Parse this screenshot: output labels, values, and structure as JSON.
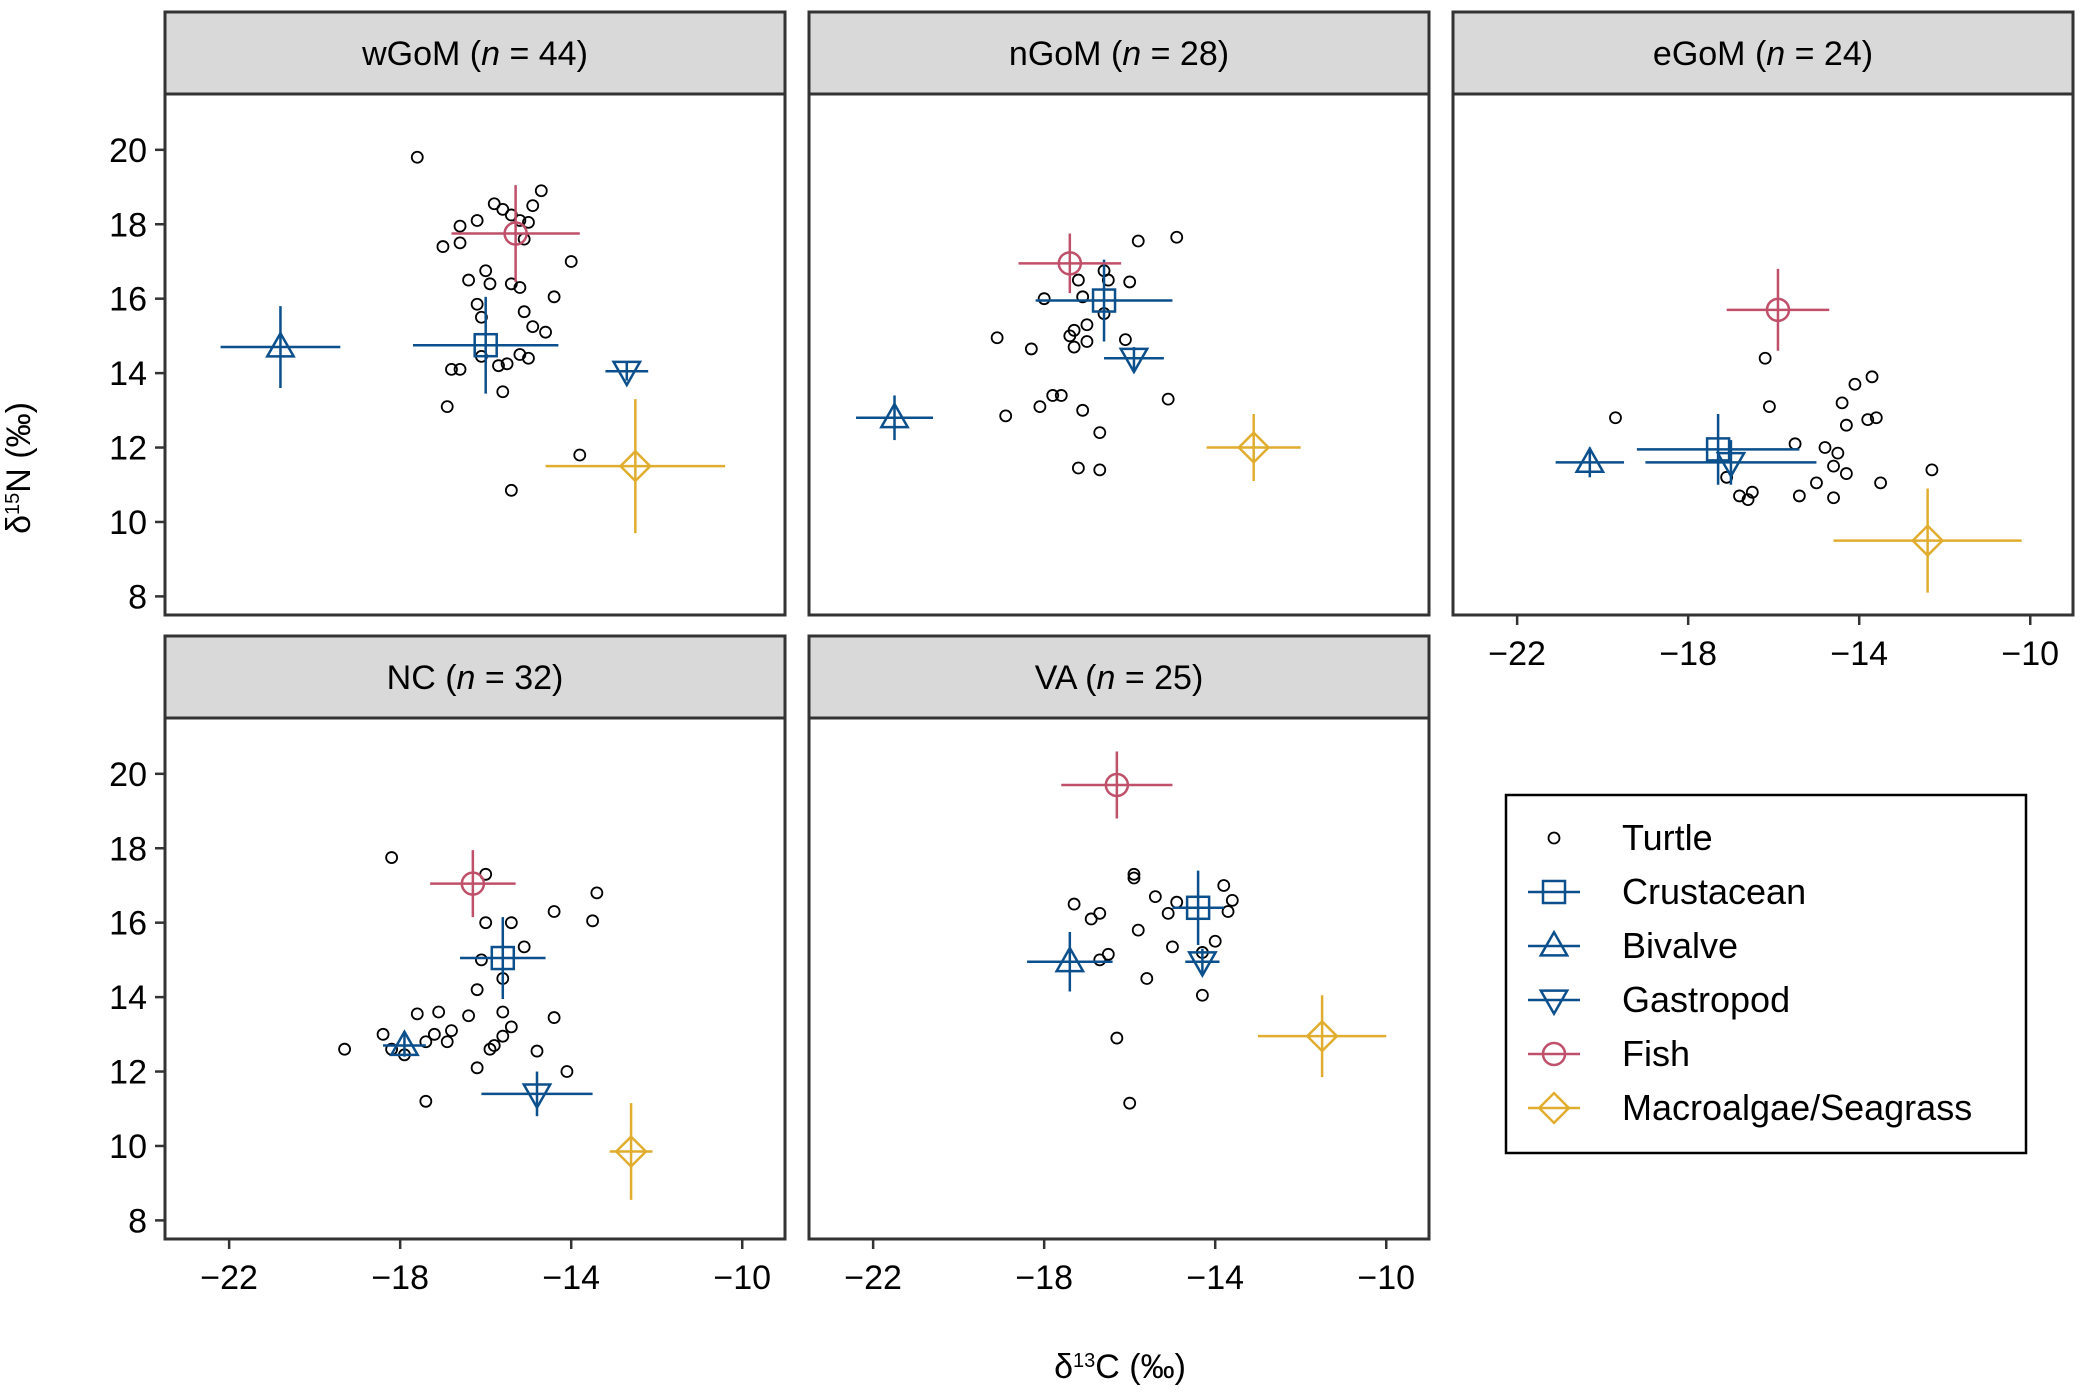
{
  "figure": {
    "x_axis_label": {
      "symbol": "δ",
      "sup": "13",
      "rest": "C (‰)"
    },
    "y_axis_label": {
      "symbol": "δ",
      "sup": "15",
      "rest": "N (‰)"
    }
  },
  "legend": {
    "entries": [
      {
        "name": "Turtle",
        "marker": "circle-small",
        "color": "#000000"
      },
      {
        "name": "Crustacean",
        "marker": "square",
        "color": "#0b4f8c"
      },
      {
        "name": "Bivalve",
        "marker": "triangle-up",
        "color": "#0b4f8c"
      },
      {
        "name": "Gastropod",
        "marker": "triangle-down",
        "color": "#0b4f8c"
      },
      {
        "name": "Fish",
        "marker": "circle",
        "color": "#c0506a"
      },
      {
        "name": "Macroalgae/Seagrass",
        "marker": "diamond",
        "color": "#e0ad2e"
      }
    ]
  },
  "chart_data": [
    {
      "type": "scatter",
      "panel": "wGoM",
      "region": "wGoM",
      "n_label": "n",
      "n_eq": " =  44",
      "xlim": [
        -23.5,
        -9
      ],
      "ylim": [
        7.5,
        21.5
      ],
      "xticks": [
        "−22",
        "−18",
        "−14",
        "−10"
      ],
      "xtick_values": [
        -22,
        -18,
        -14,
        -10
      ],
      "yticks": [
        "20",
        "18",
        "16",
        "14",
        "12",
        "10",
        "8"
      ],
      "ytick_values": [
        20,
        18,
        16,
        14,
        12,
        10,
        8
      ],
      "show_x_ticks": false,
      "turtles": [
        [
          -17.6,
          19.8
        ],
        [
          -15.8,
          18.55
        ],
        [
          -15.6,
          18.4
        ],
        [
          -15.4,
          18.25
        ],
        [
          -15.2,
          18.1
        ],
        [
          -15.0,
          18.05
        ],
        [
          -14.7,
          18.9
        ],
        [
          -14.9,
          18.5
        ],
        [
          -16.2,
          18.1
        ],
        [
          -16.6,
          17.95
        ],
        [
          -17.0,
          17.4
        ],
        [
          -16.6,
          17.5
        ],
        [
          -15.1,
          17.6
        ],
        [
          -14.0,
          17.0
        ],
        [
          -16.0,
          16.75
        ],
        [
          -16.4,
          16.5
        ],
        [
          -15.9,
          16.4
        ],
        [
          -15.4,
          16.4
        ],
        [
          -15.2,
          16.3
        ],
        [
          -14.4,
          16.05
        ],
        [
          -15.1,
          15.65
        ],
        [
          -16.2,
          15.85
        ],
        [
          -16.1,
          15.5
        ],
        [
          -14.9,
          15.25
        ],
        [
          -14.6,
          15.1
        ],
        [
          -16.1,
          14.45
        ],
        [
          -15.7,
          14.2
        ],
        [
          -15.5,
          14.25
        ],
        [
          -15.2,
          14.5
        ],
        [
          -15.0,
          14.4
        ],
        [
          -16.8,
          14.1
        ],
        [
          -16.6,
          14.1
        ],
        [
          -16.9,
          13.1
        ],
        [
          -15.6,
          13.5
        ],
        [
          -15.4,
          10.85
        ],
        [
          -13.8,
          11.8
        ]
      ],
      "sources": [
        {
          "group": "Crustacean",
          "x": -16.0,
          "y": 14.75,
          "xerr": 1.7,
          "yerr": 1.3
        },
        {
          "group": "Bivalve",
          "x": -20.8,
          "y": 14.7,
          "xerr": 1.4,
          "yerr": 1.1
        },
        {
          "group": "Gastropod",
          "x": -12.7,
          "y": 14.05,
          "xerr": 0.5,
          "yerr": 0.25
        },
        {
          "group": "Fish",
          "x": -15.3,
          "y": 17.75,
          "xerr": 1.5,
          "yerr": 1.3
        },
        {
          "group": "Macroalgae/Seagrass",
          "x": -12.5,
          "y": 11.5,
          "xerr": 2.1,
          "yerr": 1.8
        }
      ]
    },
    {
      "type": "scatter",
      "panel": "nGoM",
      "region": "nGoM",
      "n_label": "n",
      "n_eq": " = 28",
      "xlim": [
        -23.5,
        -9
      ],
      "ylim": [
        7.5,
        21.5
      ],
      "xticks": [
        "−22",
        "−18",
        "−14",
        "−10"
      ],
      "xtick_values": [
        -22,
        -18,
        -14,
        -10
      ],
      "yticks": [],
      "ytick_values": [],
      "show_x_ticks": false,
      "turtles": [
        [
          -14.9,
          17.65
        ],
        [
          -15.8,
          17.55
        ],
        [
          -16.6,
          16.75
        ],
        [
          -16.5,
          16.5
        ],
        [
          -16.0,
          16.45
        ],
        [
          -17.2,
          16.5
        ],
        [
          -18.0,
          16.0
        ],
        [
          -17.1,
          16.05
        ],
        [
          -16.6,
          15.6
        ],
        [
          -17.0,
          15.3
        ],
        [
          -17.3,
          15.15
        ],
        [
          -17.4,
          15.0
        ],
        [
          -17.0,
          14.85
        ],
        [
          -17.3,
          14.7
        ],
        [
          -18.3,
          14.65
        ],
        [
          -16.1,
          14.9
        ],
        [
          -19.1,
          14.95
        ],
        [
          -17.8,
          13.4
        ],
        [
          -17.6,
          13.4
        ],
        [
          -18.1,
          13.1
        ],
        [
          -17.1,
          13.0
        ],
        [
          -15.1,
          13.3
        ],
        [
          -18.9,
          12.85
        ],
        [
          -16.7,
          12.4
        ],
        [
          -17.2,
          11.45
        ],
        [
          -16.7,
          11.4
        ]
      ],
      "sources": [
        {
          "group": "Crustacean",
          "x": -16.6,
          "y": 15.95,
          "xerr": 1.6,
          "yerr": 1.1
        },
        {
          "group": "Bivalve",
          "x": -21.5,
          "y": 12.8,
          "xerr": 0.9,
          "yerr": 0.6
        },
        {
          "group": "Gastropod",
          "x": -15.9,
          "y": 14.4,
          "xerr": 0.7,
          "yerr": 0.3
        },
        {
          "group": "Fish",
          "x": -17.4,
          "y": 16.95,
          "xerr": 1.2,
          "yerr": 0.8
        },
        {
          "group": "Macroalgae/Seagrass",
          "x": -13.1,
          "y": 12.0,
          "xerr": 1.1,
          "yerr": 0.9
        }
      ]
    },
    {
      "type": "scatter",
      "panel": "eGoM",
      "region": "eGoM",
      "n_label": "n",
      "n_eq": " = 24",
      "xlim": [
        -23.5,
        -9
      ],
      "ylim": [
        7.5,
        21.5
      ],
      "xticks": [
        "−22",
        "−18",
        "−14",
        "−10"
      ],
      "xtick_values": [
        -22,
        -18,
        -14,
        -10
      ],
      "yticks": [],
      "ytick_values": [],
      "show_x_ticks": true,
      "turtles": [
        [
          -16.2,
          14.4
        ],
        [
          -13.7,
          13.9
        ],
        [
          -14.1,
          13.7
        ],
        [
          -14.4,
          13.2
        ],
        [
          -16.1,
          13.1
        ],
        [
          -19.7,
          12.8
        ],
        [
          -13.8,
          12.75
        ],
        [
          -13.6,
          12.8
        ],
        [
          -14.3,
          12.6
        ],
        [
          -15.5,
          12.1
        ],
        [
          -14.8,
          12.0
        ],
        [
          -14.5,
          11.85
        ],
        [
          -14.6,
          11.5
        ],
        [
          -14.3,
          11.3
        ],
        [
          -15.0,
          11.05
        ],
        [
          -13.5,
          11.05
        ],
        [
          -12.3,
          11.4
        ],
        [
          -15.4,
          10.7
        ],
        [
          -14.6,
          10.65
        ],
        [
          -16.5,
          10.8
        ],
        [
          -16.8,
          10.7
        ],
        [
          -16.6,
          10.6
        ],
        [
          -17.1,
          11.2
        ]
      ],
      "sources": [
        {
          "group": "Crustacean",
          "x": -17.3,
          "y": 11.95,
          "xerr": 1.9,
          "yerr": 0.95
        },
        {
          "group": "Bivalve",
          "x": -20.3,
          "y": 11.6,
          "xerr": 0.8,
          "yerr": 0.4
        },
        {
          "group": "Gastropod",
          "x": -17.0,
          "y": 11.6,
          "xerr": 2.0,
          "yerr": 0.6
        },
        {
          "group": "Fish",
          "x": -15.9,
          "y": 15.7,
          "xerr": 1.2,
          "yerr": 1.1
        },
        {
          "group": "Macroalgae/Seagrass",
          "x": -12.4,
          "y": 9.5,
          "xerr": 2.2,
          "yerr": 1.4
        }
      ]
    },
    {
      "type": "scatter",
      "panel": "NC",
      "region": "NC",
      "n_label": "n",
      "n_eq": " = 32",
      "xlim": [
        -23.5,
        -9
      ],
      "ylim": [
        7.5,
        21.5
      ],
      "xticks": [
        "−22",
        "−18",
        "−14",
        "−10"
      ],
      "xtick_values": [
        -22,
        -18,
        -14,
        -10
      ],
      "yticks": [
        "20",
        "18",
        "16",
        "14",
        "12",
        "10",
        "8"
      ],
      "ytick_values": [
        20,
        18,
        16,
        14,
        12,
        10,
        8
      ],
      "show_x_ticks": true,
      "turtles": [
        [
          -18.2,
          17.75
        ],
        [
          -16.0,
          17.3
        ],
        [
          -13.4,
          16.8
        ],
        [
          -14.4,
          16.3
        ],
        [
          -13.5,
          16.05
        ],
        [
          -15.4,
          16.0
        ],
        [
          -16.0,
          16.0
        ],
        [
          -15.1,
          15.35
        ],
        [
          -16.1,
          15.0
        ],
        [
          -15.6,
          14.5
        ],
        [
          -16.2,
          14.2
        ],
        [
          -15.6,
          13.6
        ],
        [
          -14.4,
          13.45
        ],
        [
          -17.6,
          13.55
        ],
        [
          -17.1,
          13.6
        ],
        [
          -16.4,
          13.5
        ],
        [
          -15.4,
          13.2
        ],
        [
          -16.8,
          13.1
        ],
        [
          -17.2,
          13.0
        ],
        [
          -18.4,
          13.0
        ],
        [
          -15.6,
          12.95
        ],
        [
          -16.9,
          12.8
        ],
        [
          -17.4,
          12.8
        ],
        [
          -18.2,
          12.6
        ],
        [
          -19.3,
          12.6
        ],
        [
          -15.8,
          12.7
        ],
        [
          -14.8,
          12.55
        ],
        [
          -17.9,
          12.45
        ],
        [
          -16.2,
          12.1
        ],
        [
          -14.1,
          12.0
        ],
        [
          -17.4,
          11.2
        ],
        [
          -15.9,
          12.6
        ]
      ],
      "sources": [
        {
          "group": "Crustacean",
          "x": -15.6,
          "y": 15.05,
          "xerr": 1.0,
          "yerr": 1.1
        },
        {
          "group": "Bivalve",
          "x": -17.9,
          "y": 12.7,
          "xerr": 0.5,
          "yerr": 0.3
        },
        {
          "group": "Gastropod",
          "x": -14.8,
          "y": 11.4,
          "xerr": 1.3,
          "yerr": 0.6
        },
        {
          "group": "Fish",
          "x": -16.3,
          "y": 17.05,
          "xerr": 1.0,
          "yerr": 0.9
        },
        {
          "group": "Macroalgae/Seagrass",
          "x": -12.6,
          "y": 9.85,
          "xerr": 0.5,
          "yerr": 1.3
        }
      ]
    },
    {
      "type": "scatter",
      "panel": "VA",
      "region": "VA",
      "n_label": "n",
      "n_eq": " = 25",
      "xlim": [
        -23.5,
        -9
      ],
      "ylim": [
        7.5,
        21.5
      ],
      "xticks": [
        "−22",
        "−18",
        "−14",
        "−10"
      ],
      "xtick_values": [
        -22,
        -18,
        -14,
        -10
      ],
      "yticks": [],
      "ytick_values": [],
      "show_x_ticks": true,
      "turtles": [
        [
          -15.9,
          17.3
        ],
        [
          -15.9,
          17.2
        ],
        [
          -15.4,
          16.7
        ],
        [
          -13.8,
          17.0
        ],
        [
          -13.6,
          16.6
        ],
        [
          -13.7,
          16.3
        ],
        [
          -14.9,
          16.55
        ],
        [
          -17.3,
          16.5
        ],
        [
          -15.1,
          16.25
        ],
        [
          -16.7,
          16.25
        ],
        [
          -16.9,
          16.1
        ],
        [
          -15.8,
          15.8
        ],
        [
          -14.0,
          15.5
        ],
        [
          -15.0,
          15.35
        ],
        [
          -14.3,
          15.2
        ],
        [
          -16.7,
          15.0
        ],
        [
          -16.5,
          15.15
        ],
        [
          -15.6,
          14.5
        ],
        [
          -14.3,
          14.05
        ],
        [
          -16.3,
          12.9
        ],
        [
          -16.0,
          11.15
        ]
      ],
      "sources": [
        {
          "group": "Crustacean",
          "x": -14.4,
          "y": 16.4,
          "xerr": 0.6,
          "yerr": 1.0
        },
        {
          "group": "Bivalve",
          "x": -17.4,
          "y": 14.95,
          "xerr": 1.0,
          "yerr": 0.8
        },
        {
          "group": "Gastropod",
          "x": -14.3,
          "y": 14.95,
          "xerr": 0.4,
          "yerr": 0.35
        },
        {
          "group": "Fish",
          "x": -16.3,
          "y": 19.7,
          "xerr": 1.3,
          "yerr": 0.9
        },
        {
          "group": "Macroalgae/Seagrass",
          "x": -11.5,
          "y": 12.95,
          "xerr": 1.5,
          "yerr": 1.1
        }
      ]
    }
  ]
}
